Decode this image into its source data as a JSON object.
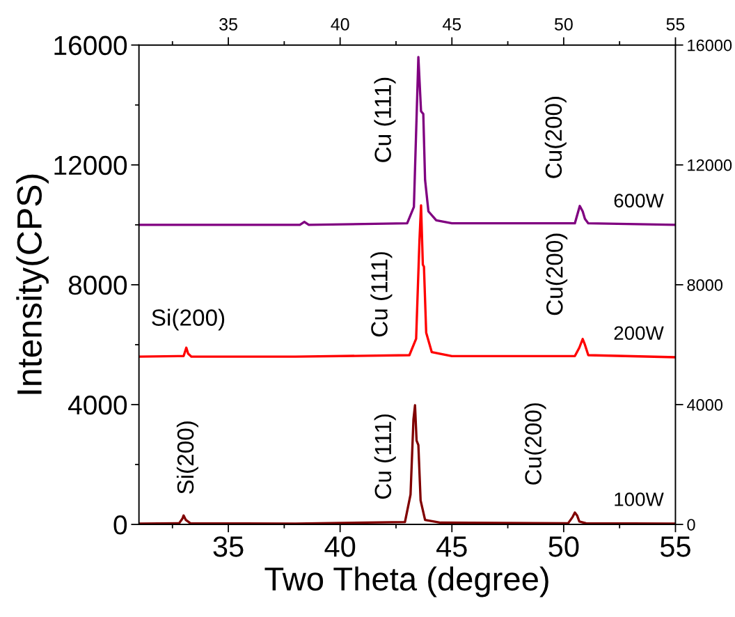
{
  "chart_data": {
    "type": "line",
    "xlabel": "Two Theta (degree)",
    "ylabel": "Intensity(CPS)",
    "xlim": [
      31,
      55
    ],
    "xticks": [
      35,
      40,
      45,
      50,
      55
    ],
    "ylim": [
      0,
      16000
    ],
    "yticks": [
      0,
      4000,
      8000,
      12000,
      16000
    ],
    "x2lim": [
      31,
      55
    ],
    "x2ticks": [
      35,
      40,
      45,
      50,
      55
    ],
    "y2lim": [
      0,
      16000
    ],
    "y2ticks": [
      0,
      4000,
      8000,
      12000,
      16000
    ],
    "grid": false,
    "legend": false,
    "marker": "none",
    "line_style": "solid",
    "series": [
      {
        "name": "100W",
        "color": "#800000",
        "x": [
          31,
          32.8,
          32.95,
          33.0,
          33.1,
          33.3,
          38,
          42.9,
          43.15,
          43.28,
          43.35,
          43.42,
          43.5,
          43.6,
          43.8,
          44.5,
          50.2,
          50.4,
          50.5,
          50.6,
          50.7,
          51,
          55
        ],
        "values": [
          30,
          40,
          200,
          300,
          150,
          40,
          30,
          80,
          1000,
          3500,
          3980,
          2800,
          2650,
          800,
          150,
          60,
          40,
          250,
          400,
          300,
          100,
          40,
          30
        ]
      },
      {
        "name": "200W",
        "color": "#ff0000",
        "x": [
          31,
          33.0,
          33.12,
          33.2,
          33.35,
          38,
          43.1,
          43.4,
          43.55,
          43.62,
          43.7,
          43.75,
          43.85,
          44.1,
          45,
          50.5,
          50.7,
          50.85,
          50.95,
          51.1,
          55
        ],
        "values": [
          5600,
          5620,
          5900,
          5700,
          5600,
          5600,
          5650,
          6200,
          9500,
          10650,
          8670,
          8600,
          6400,
          5750,
          5620,
          5620,
          5900,
          6190,
          6000,
          5650,
          5580
        ]
      },
      {
        "name": "600W",
        "color": "#800080",
        "x": [
          31,
          38.2,
          38.4,
          38.6,
          43.0,
          43.3,
          43.5,
          43.62,
          43.72,
          43.8,
          43.95,
          44.3,
          45,
          50.5,
          50.72,
          50.85,
          50.95,
          51.1,
          55
        ],
        "values": [
          10000,
          10000,
          10100,
          10000,
          10050,
          10600,
          15600,
          13790,
          13700,
          11500,
          10450,
          10150,
          10050,
          10050,
          10630,
          10450,
          10200,
          10050,
          10000
        ]
      }
    ],
    "annotations": [
      {
        "text": "Cu (111)",
        "x": 43.3,
        "y": 10600
      },
      {
        "text": "Cu(200)",
        "x": 50.72,
        "y": 10630
      },
      {
        "text": "Cu (111)",
        "x": 43.4,
        "y": 6200
      },
      {
        "text": "Cu(200)",
        "x": 50.85,
        "y": 6190
      },
      {
        "text": "Si(200)",
        "x": 33.12,
        "y": 5900
      },
      {
        "text": "Cu (111)",
        "x": 43.35,
        "y": 3980
      },
      {
        "text": "Cu(200)",
        "x": 50.5,
        "y": 400
      },
      {
        "text": "Si(200)",
        "x": 33.0,
        "y": 300
      }
    ]
  }
}
